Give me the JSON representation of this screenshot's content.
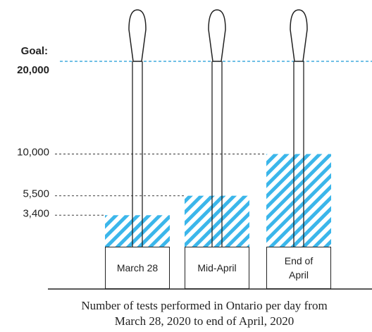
{
  "chart_data": {
    "type": "bar",
    "categories": [
      "March 28",
      "Mid-April",
      "End of April"
    ],
    "values": [
      3400,
      5500,
      10000
    ],
    "color": "#3bb6ea",
    "ylim": [
      0,
      20000
    ],
    "yticks": [
      {
        "value": 3400,
        "label": "3,400"
      },
      {
        "value": 5500,
        "label": "5,500"
      },
      {
        "value": 10000,
        "label": "10,000"
      }
    ],
    "goal": {
      "label": "Goal:",
      "value": 20000,
      "value_label": "20,000",
      "color": "#1a9ad6"
    },
    "caption": "Number of tests performed in Ontario per day from March 28, 2020 to end of April, 2020"
  }
}
